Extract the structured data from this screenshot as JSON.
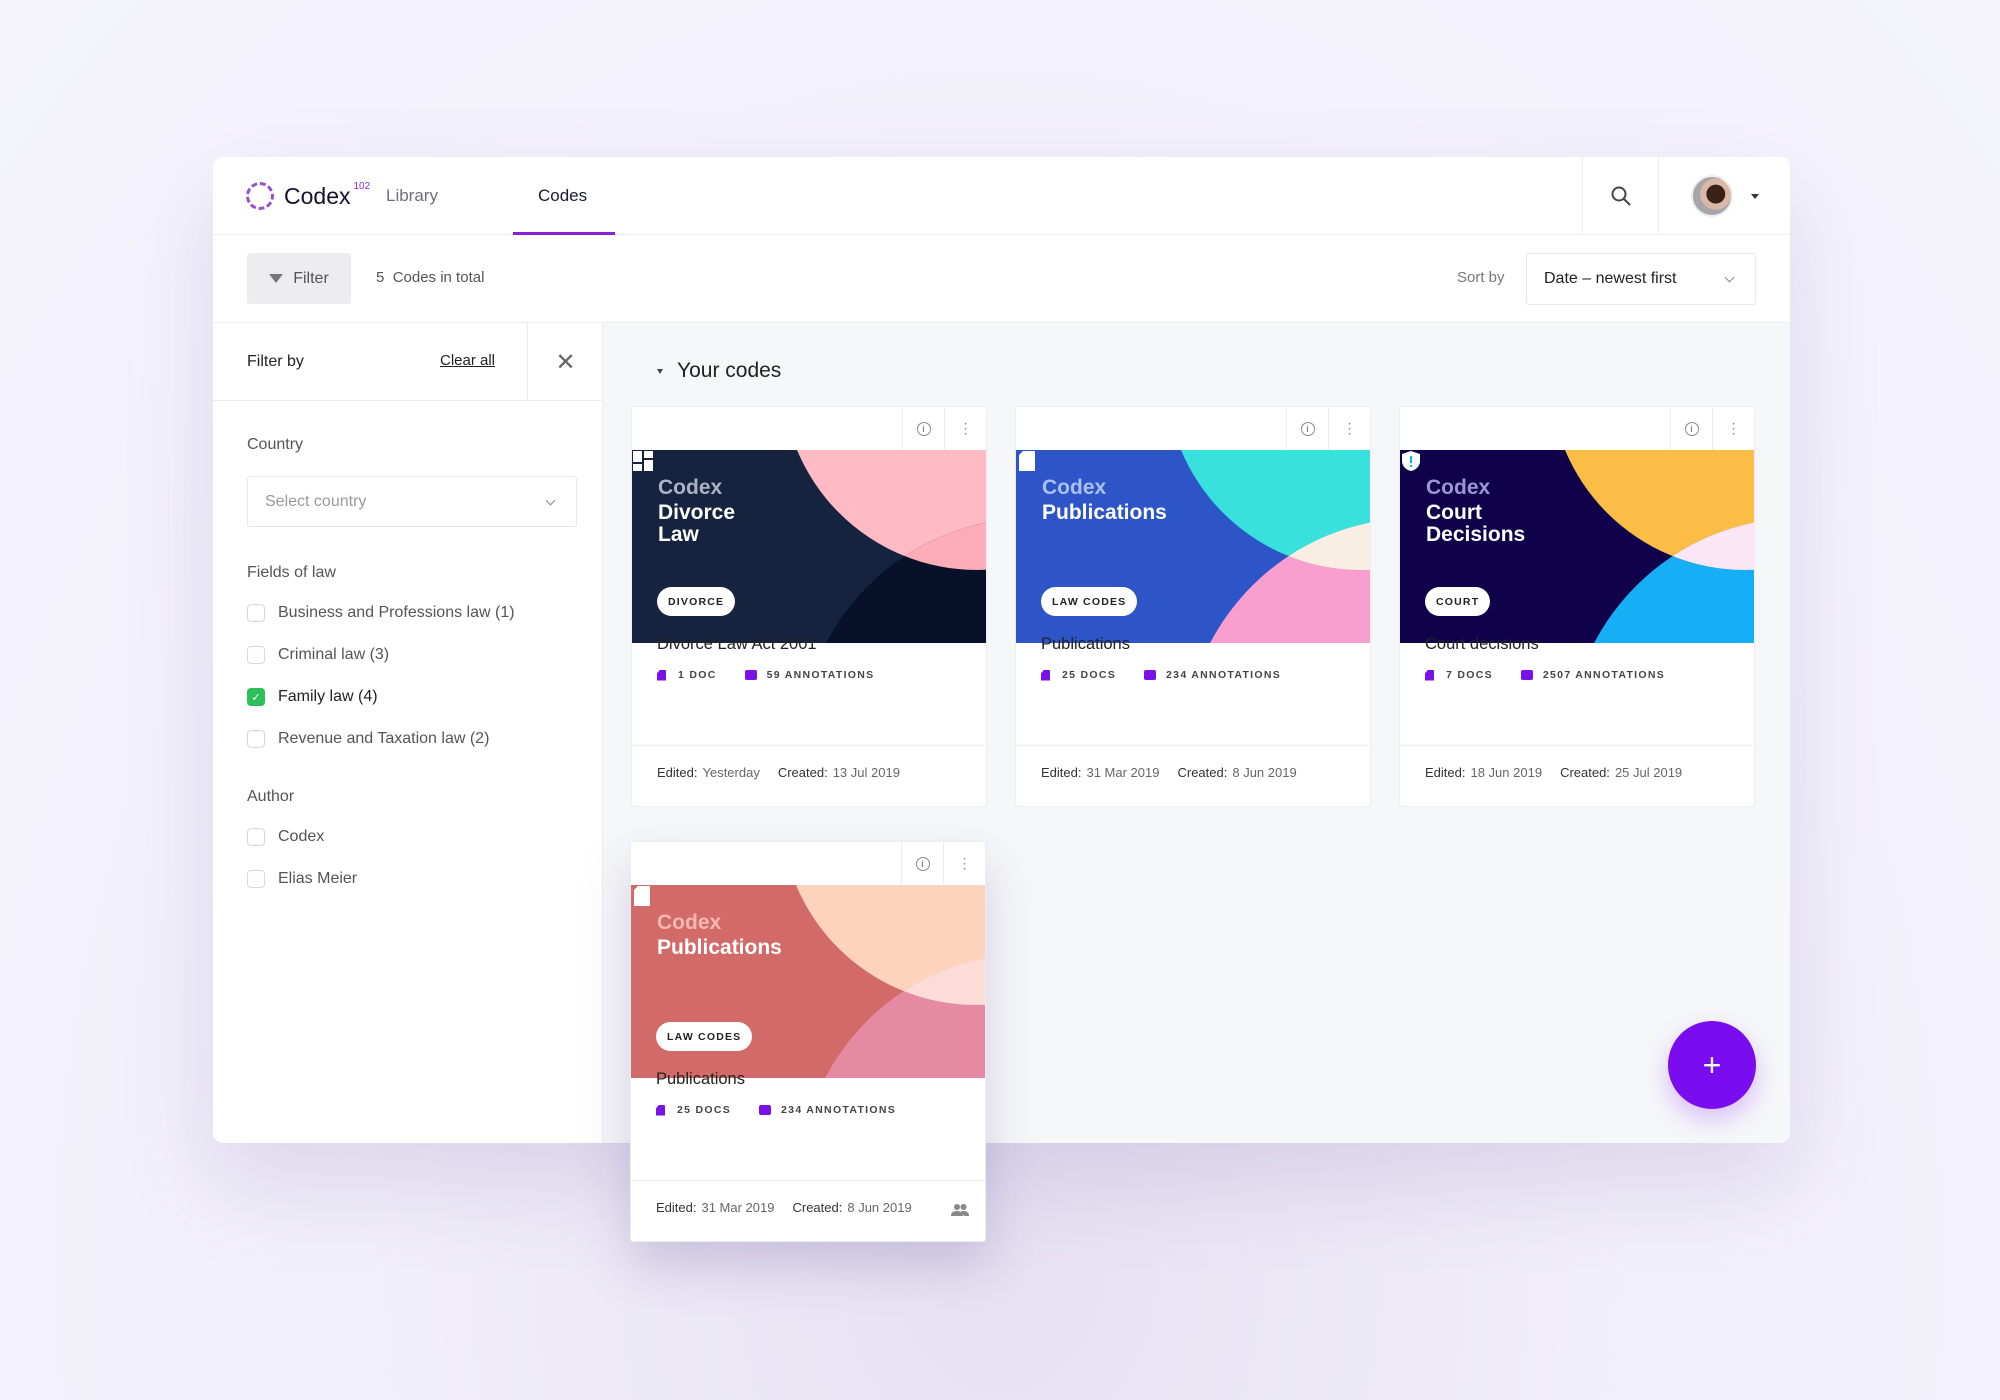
{
  "header": {
    "logo": "Codex",
    "logo_sup": "102",
    "nav": [
      "Library",
      "Codes"
    ],
    "active_tab": "Codes"
  },
  "toolbar": {
    "filter_label": "Filter",
    "count": "5",
    "count_label": "Codes in total",
    "sort_label": "Sort by",
    "sort_value": "Date – newest first"
  },
  "sidebar": {
    "title": "Filter by",
    "clear_all": "Clear all",
    "country_label": "Country",
    "country_placeholder": "Select country",
    "fields_label": "Fields of law",
    "fields": [
      {
        "label": "Business and Professions law (1)",
        "checked": false
      },
      {
        "label": "Criminal law (3)",
        "checked": false
      },
      {
        "label": "Family law (4)",
        "checked": true
      },
      {
        "label": "Revenue and Taxation law (2)",
        "checked": false
      }
    ],
    "author_label": "Author",
    "authors": [
      {
        "label": "Codex",
        "checked": false
      },
      {
        "label": "Elias Meier",
        "checked": false
      }
    ]
  },
  "main": {
    "section_title": "Your codes",
    "codes": [
      {
        "brand": "Codex",
        "title": "Divorce\nLaw",
        "tag": "DIVORCE",
        "icon": "dashboard-icon",
        "name": "Divorce Law Act 2001",
        "docs": "1 DOC",
        "annotations": "59 ANNOTATIONS",
        "edited_label": "Edited:",
        "edited": "Yesterday",
        "created_label": "Created:",
        "created": "13 Jul 2019",
        "colors": {
          "bg": "#15233f",
          "c1": "#ffbac4",
          "c2": "#07122a",
          "overlap": "#fcadb8",
          "brand": "#a9b3c4"
        }
      },
      {
        "brand": "Codex",
        "title": "Publications",
        "tag": "LAW CODES",
        "icon": "document-icon",
        "name": "Publications",
        "docs": "25 DOCS",
        "annotations": "234 ANNOTATIONS",
        "edited_label": "Edited:",
        "edited": "31 Mar 2019",
        "created_label": "Created:",
        "created": "8 Jun 2019",
        "colors": {
          "bg": "#2e55c8",
          "c1": "#38e1dc",
          "c2": "#f99fcf",
          "overlap": "#f8efe2",
          "brand": "#a9c0f0"
        }
      },
      {
        "brand": "Codex",
        "title": "Court\nDecisions",
        "tag": "COURT",
        "icon": "shield-alert-icon",
        "name": "Court decisions",
        "docs": "7 DOCS",
        "annotations": "2507 ANNOTATIONS",
        "edited_label": "Edited:",
        "edited": "18 Jun 2019",
        "created_label": "Created:",
        "created": "25 Jul 2019",
        "colors": {
          "bg": "#10024a",
          "c1": "#fbbd45",
          "c2": "#16aef5",
          "overlap": "#fae6f4",
          "brand": "#9f94d1"
        }
      },
      {
        "brand": "Codex",
        "title": "Publications",
        "tag": "LAW CODES",
        "icon": "document-icon",
        "name": "Publications",
        "docs": "25 DOCS",
        "annotations": "234 ANNOTATIONS",
        "edited_label": "Edited:",
        "edited": "31 Mar 2019",
        "created_label": "Created:",
        "created": "8 Jun 2019",
        "shared": true,
        "colors": {
          "bg": "#d26a69",
          "c1": "#fdd3bd",
          "c2": "#e58aa2",
          "overlap": "#fcdcd6",
          "brand": "#f7b8b2"
        }
      }
    ]
  },
  "fab": {
    "label": "+"
  },
  "colors": {
    "accent": "#7a0cf0",
    "check": "#2cbf5a"
  }
}
